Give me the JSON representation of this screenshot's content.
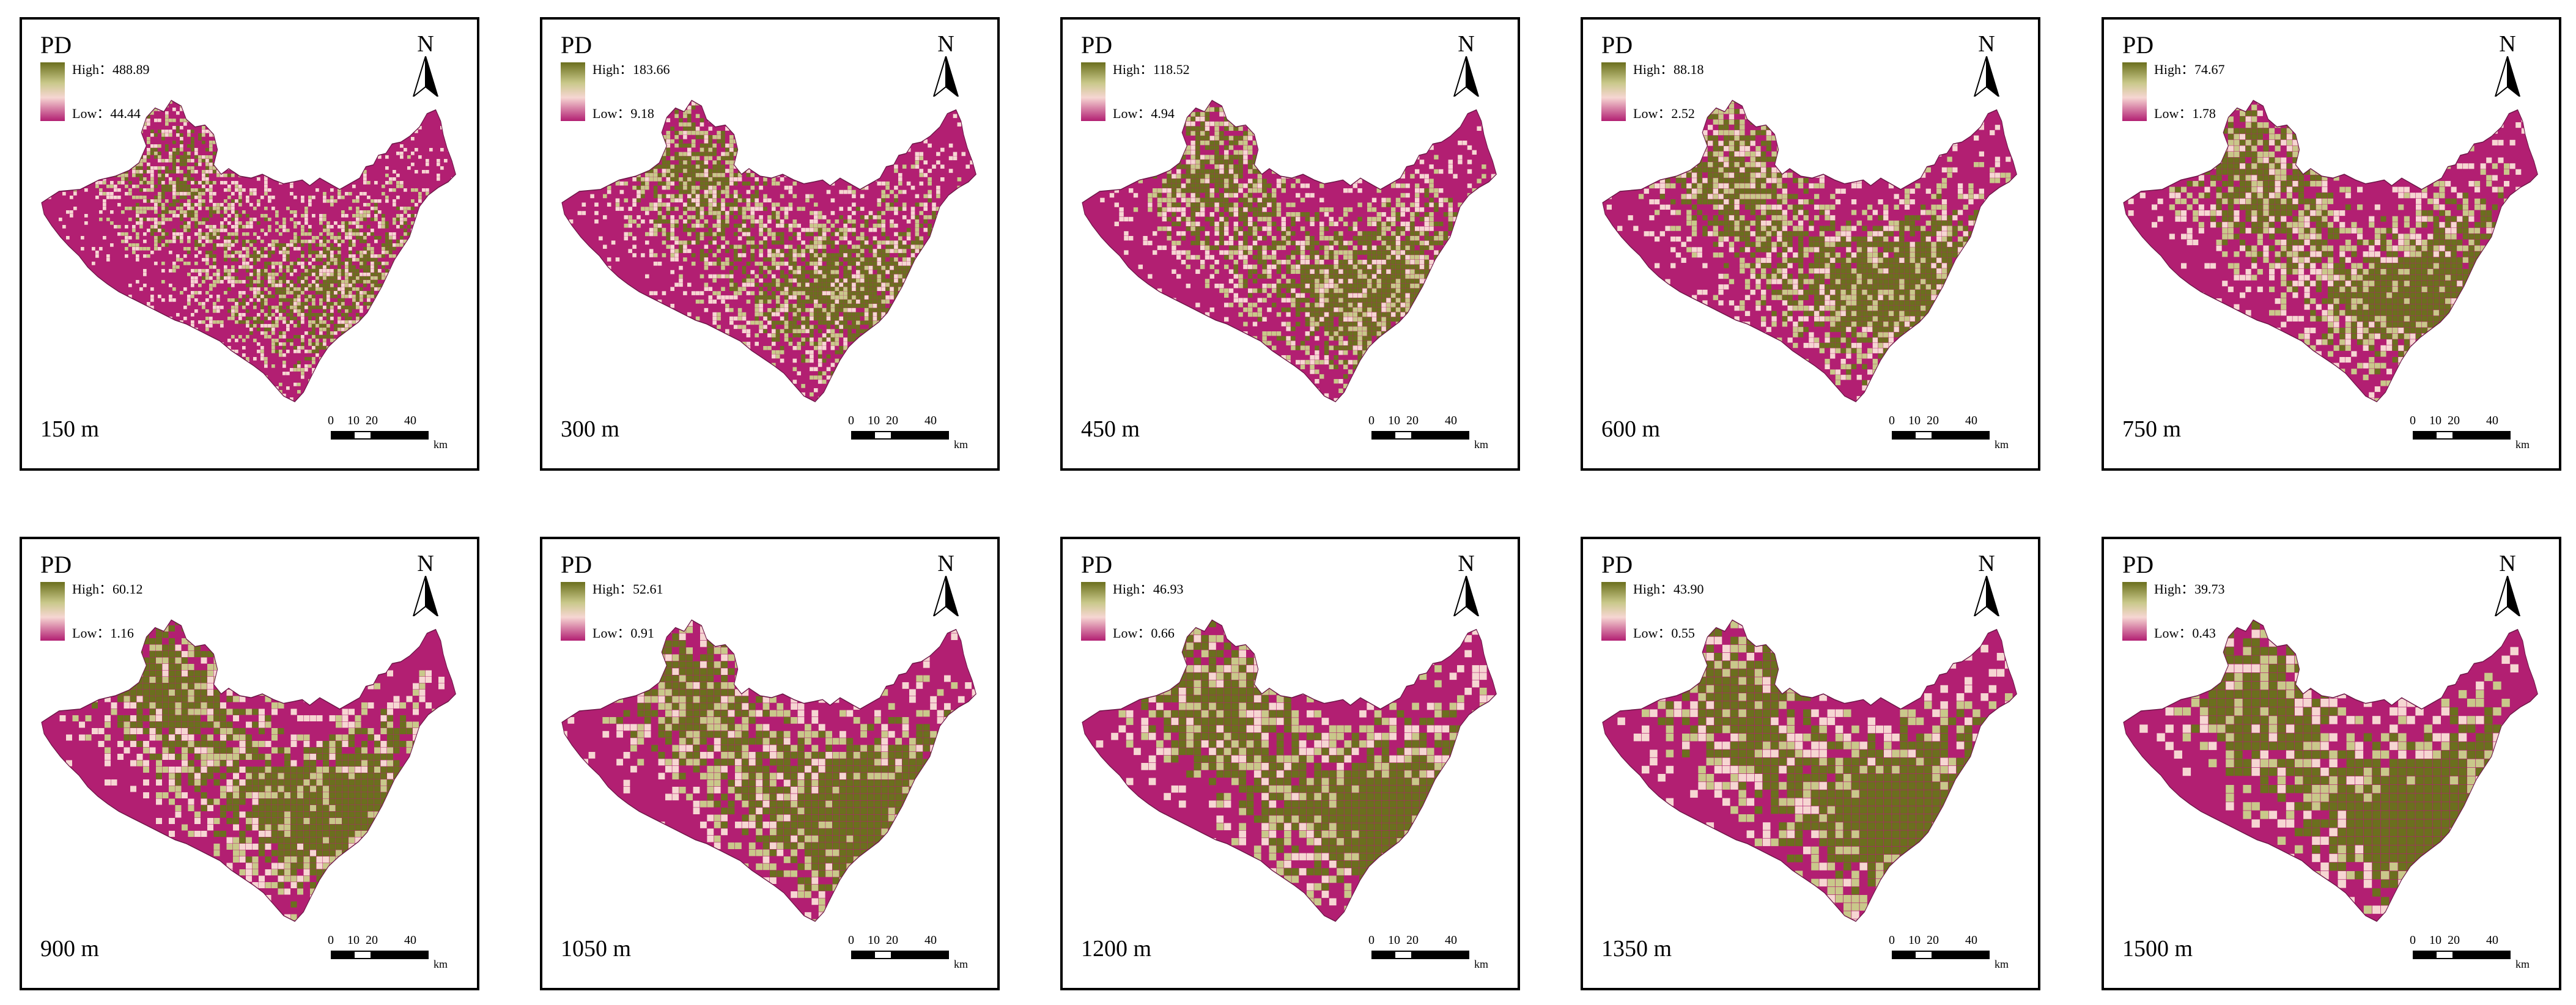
{
  "colors": {
    "high": "#6b6f1e",
    "mid_high": "#c9c88a",
    "mid": "#f6d6d2",
    "low": "#b21f72",
    "border": "#000000"
  },
  "panels": [
    {
      "pd_label": "PD",
      "high_text": "High：488.89",
      "low_text": "Low：44.44",
      "north": "N",
      "resolution": "150 m",
      "scale_ticks": [
        "0",
        "10",
        "20",
        "40"
      ],
      "scale_unit": "km",
      "high_fraction": 0.22
    },
    {
      "pd_label": "PD",
      "high_text": "High：183.66",
      "low_text": "Low：9.18",
      "north": "N",
      "resolution": "300 m",
      "scale_ticks": [
        "0",
        "10",
        "20",
        "40"
      ],
      "scale_unit": "km",
      "high_fraction": 0.27
    },
    {
      "pd_label": "PD",
      "high_text": "High：118.52",
      "low_text": "Low：4.94",
      "north": "N",
      "resolution": "450 m",
      "scale_ticks": [
        "0",
        "10",
        "20",
        "40"
      ],
      "scale_unit": "km",
      "high_fraction": 0.3
    },
    {
      "pd_label": "PD",
      "high_text": "High：88.18",
      "low_text": "Low：2.52",
      "north": "N",
      "resolution": "600 m",
      "scale_ticks": [
        "0",
        "10",
        "20",
        "40"
      ],
      "scale_unit": "km",
      "high_fraction": 0.32
    },
    {
      "pd_label": "PD",
      "high_text": "High：74.67",
      "low_text": "Low：1.78",
      "north": "N",
      "resolution": "750 m",
      "scale_ticks": [
        "0",
        "10",
        "20",
        "40"
      ],
      "scale_unit": "km",
      "high_fraction": 0.33
    },
    {
      "pd_label": "PD",
      "high_text": "High：60.12",
      "low_text": "Low：1.16",
      "north": "N",
      "resolution": "900 m",
      "scale_ticks": [
        "0",
        "10",
        "20",
        "40"
      ],
      "scale_unit": "km",
      "high_fraction": 0.36
    },
    {
      "pd_label": "PD",
      "high_text": "High：52.61",
      "low_text": "Low：0.91",
      "north": "N",
      "resolution": "1050 m",
      "scale_ticks": [
        "0",
        "10",
        "20",
        "40"
      ],
      "scale_unit": "km",
      "high_fraction": 0.37
    },
    {
      "pd_label": "PD",
      "high_text": "High：46.93",
      "low_text": "Low：0.66",
      "north": "N",
      "resolution": "1200 m",
      "scale_ticks": [
        "0",
        "10",
        "20",
        "40"
      ],
      "scale_unit": "km",
      "high_fraction": 0.39
    },
    {
      "pd_label": "PD",
      "high_text": "High：43.90",
      "low_text": "Low：0.55",
      "north": "N",
      "resolution": "1350 m",
      "scale_ticks": [
        "0",
        "10",
        "20",
        "40"
      ],
      "scale_unit": "km",
      "high_fraction": 0.4
    },
    {
      "pd_label": "PD",
      "high_text": "High：39.73",
      "low_text": "Low：0.43",
      "north": "N",
      "resolution": "1500 m",
      "scale_ticks": [
        "0",
        "10",
        "20",
        "40"
      ],
      "scale_unit": "km",
      "high_fraction": 0.41
    }
  ]
}
